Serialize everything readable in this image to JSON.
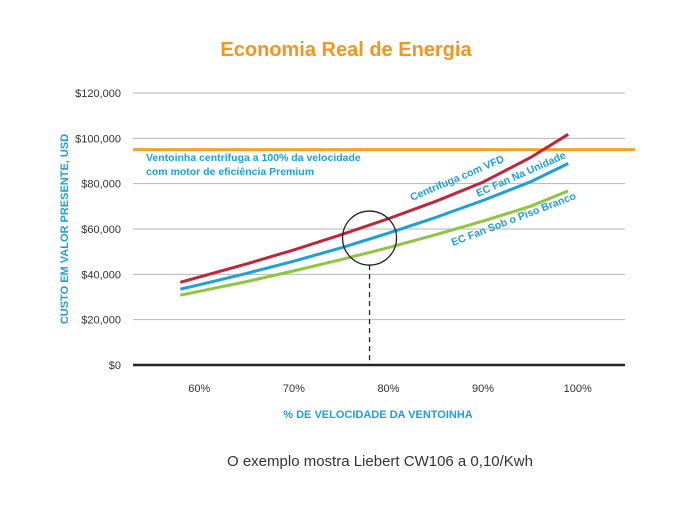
{
  "chart_data": {
    "type": "line",
    "title": "Economia Real de Energia",
    "xlabel": "% DE VELOCIDADE DA VENTOINHA",
    "ylabel": "CUSTO EM VALOR PRESENTE, USD",
    "x_tick_labels": [
      "60%",
      "70%",
      "80%",
      "90%",
      "100%"
    ],
    "y_tick_labels": [
      "$0",
      "$20,000",
      "$40,000",
      "$60,000",
      "$80,000",
      "$100,000",
      "$120,000"
    ],
    "xlim": [
      53,
      105
    ],
    "ylim": [
      0,
      120000
    ],
    "grid": "horizontal",
    "series": [
      {
        "name": "Centrifuga com VFD",
        "color": "#c0263b",
        "x": [
          58,
          60,
          65,
          70,
          75,
          80,
          85,
          90,
          95,
          99
        ],
        "values": [
          36500,
          38800,
          44600,
          50800,
          57500,
          64600,
          72200,
          80700,
          91500,
          101800
        ]
      },
      {
        "name": "EC Fan Na Unidade",
        "color": "#1ba0d8",
        "x": [
          58,
          60,
          65,
          70,
          75,
          80,
          85,
          90,
          95,
          99
        ],
        "values": [
          33500,
          35400,
          40400,
          45800,
          51700,
          58200,
          65100,
          72600,
          80800,
          88900
        ]
      },
      {
        "name": "EC Fan Sob o Piso Branco",
        "color": "#8dc63f",
        "x": [
          58,
          60,
          65,
          70,
          75,
          80,
          85,
          90,
          95,
          99
        ],
        "values": [
          30800,
          32500,
          36800,
          41500,
          46500,
          51800,
          57500,
          63500,
          70000,
          76800
        ]
      }
    ],
    "reference_line": {
      "y": 95000,
      "color": "#f7a21b",
      "label_lines": [
        "Ventoinha centrífuga a 100% da velocidade",
        "com motor de eficiência Premium"
      ]
    },
    "highlight": {
      "x": 78,
      "y": 56000
    },
    "colors": {
      "title": "#f7941d",
      "axis_title": "#1ba0d8",
      "grid": "#b5b5b5",
      "baseline": "#222222"
    }
  },
  "footnote": "O exemplo mostra Liebert CW106 a 0,10/Kwh"
}
